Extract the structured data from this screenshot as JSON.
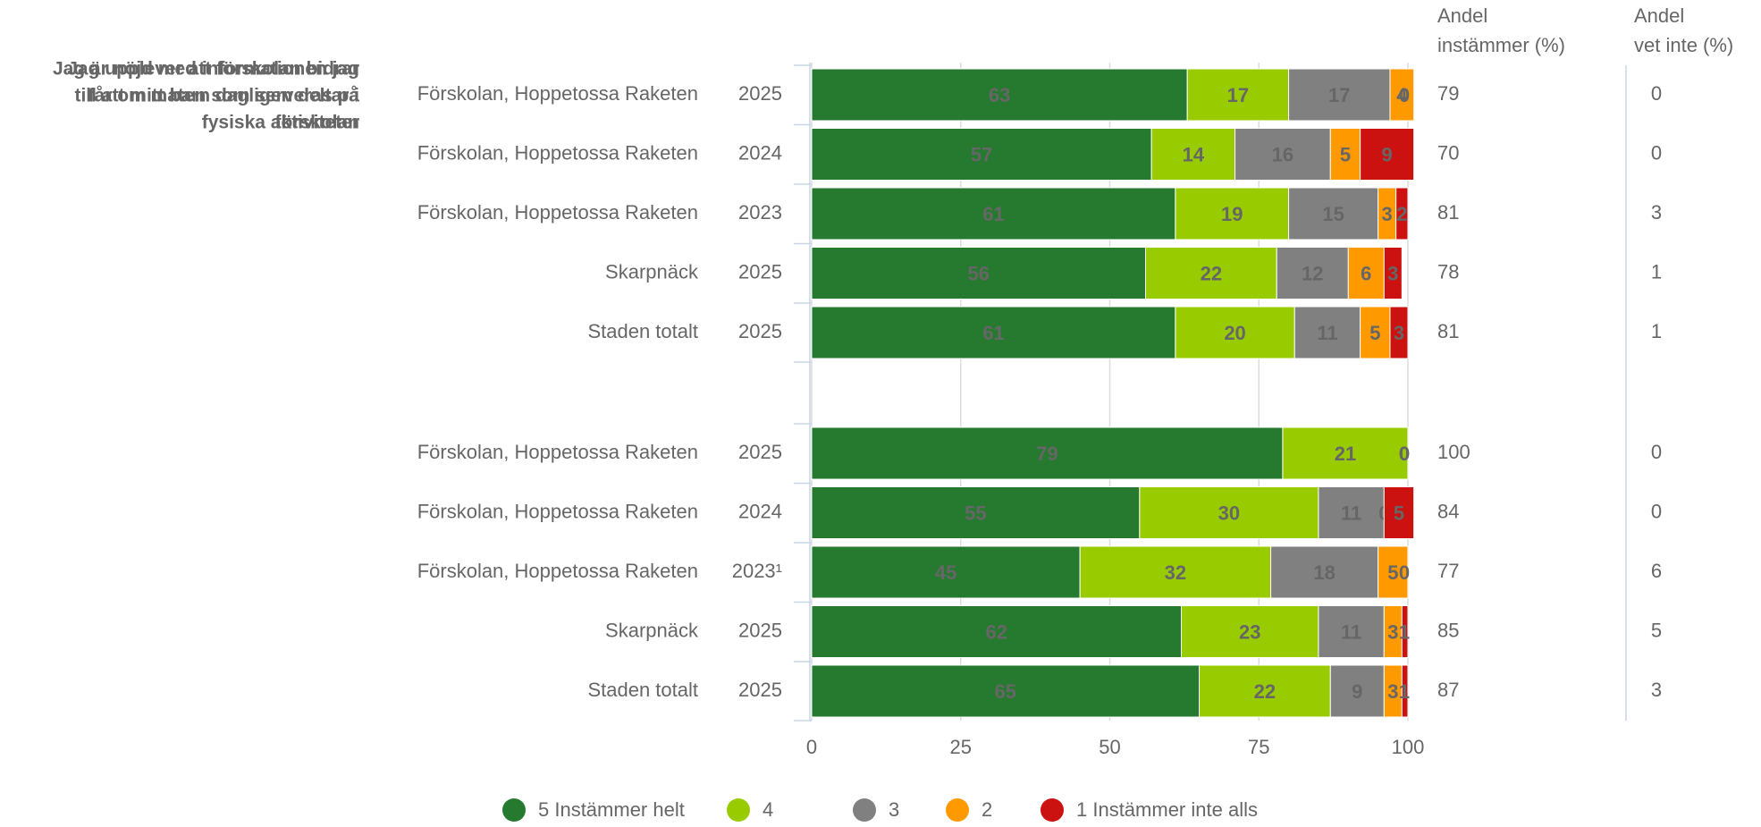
{
  "chart_data": {
    "type": "bar",
    "orientation": "horizontal",
    "stacked": true,
    "xlim": [
      0,
      100
    ],
    "xticks": [
      0,
      25,
      50,
      75,
      100
    ],
    "grid": true,
    "legend": "bottom",
    "groups": [
      {
        "title": [
          "Jag är nöjd med informationen jag",
          "får om maten som serveras på",
          "förskolan"
        ],
        "rows": [
          {
            "name": "Förskolan, Hoppetossa Raketen",
            "year": "2025"
          },
          {
            "name": "Förskolan, Hoppetossa Raketen",
            "year": "2024"
          },
          {
            "name": "Förskolan, Hoppetossa Raketen",
            "year": "2023"
          },
          {
            "name": "Skarpnäck",
            "year": "2025"
          },
          {
            "name": "Staden totalt",
            "year": "2025"
          }
        ]
      },
      {
        "title": [
          "Jag upplever att förskolan bidrar",
          "till att mitt barn dagligen deltar i",
          "fysiska aktiviteter"
        ],
        "rows": [
          {
            "name": "Förskolan, Hoppetossa Raketen",
            "year": "2025"
          },
          {
            "name": "Förskolan, Hoppetossa Raketen",
            "year": "2024"
          },
          {
            "name": "Förskolan, Hoppetossa Raketen",
            "year": "2023¹"
          },
          {
            "name": "Skarpnäck",
            "year": "2025"
          },
          {
            "name": "Staden totalt",
            "year": "2025"
          }
        ]
      }
    ],
    "series": [
      {
        "name": "5 Instämmer helt",
        "color": "#267a2f",
        "label_color": "#ffffff",
        "values": [
          63,
          57,
          61,
          56,
          61,
          79,
          55,
          45,
          62,
          65
        ]
      },
      {
        "name": "4",
        "color": "#99cc00",
        "label_color": "#222222",
        "values": [
          17,
          14,
          19,
          22,
          20,
          21,
          30,
          32,
          23,
          22
        ]
      },
      {
        "name": "3",
        "color": "#808080",
        "label_color": "#222222",
        "values": [
          17,
          16,
          15,
          12,
          11,
          0,
          11,
          18,
          11,
          9
        ]
      },
      {
        "name": "2",
        "color": "#ff9900",
        "label_color": "#222222",
        "values": [
          4,
          5,
          3,
          6,
          5,
          0,
          0,
          5,
          3,
          3
        ]
      },
      {
        "name": "1 Instämmer inte alls",
        "color": "#cc1111",
        "label_color": "#ffffff",
        "values": [
          0,
          9,
          2,
          3,
          3,
          0,
          5,
          0,
          1,
          1
        ]
      }
    ],
    "columns": [
      {
        "title": [
          "Andel",
          "instämmer (%)"
        ],
        "values": [
          79,
          70,
          81,
          78,
          81,
          100,
          84,
          77,
          85,
          87
        ]
      },
      {
        "title": [
          "Andel",
          "vet inte (%)"
        ],
        "values": [
          0,
          0,
          3,
          1,
          1,
          0,
          0,
          6,
          5,
          3
        ]
      }
    ]
  }
}
